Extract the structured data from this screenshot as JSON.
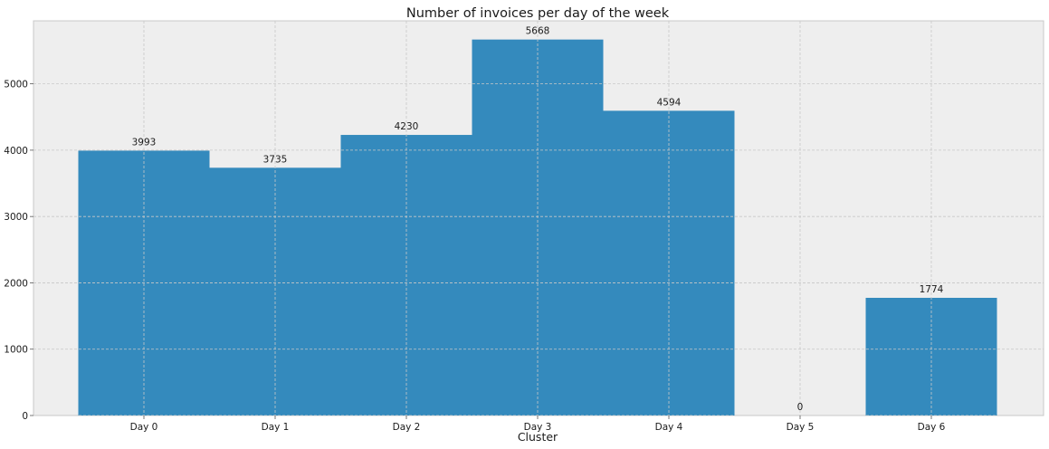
{
  "chart_data": {
    "type": "bar",
    "title": "Number of invoices per day of the week",
    "xlabel": "Cluster",
    "ylabel": "",
    "categories": [
      "Day 0",
      "Day 1",
      "Day 2",
      "Day 3",
      "Day 4",
      "Day 5",
      "Day 6"
    ],
    "values": [
      3993,
      3735,
      4230,
      5668,
      4594,
      0,
      1774
    ],
    "data_labels": [
      "3993",
      "3735",
      "4230",
      "5668",
      "4594",
      "0",
      "1774"
    ],
    "yticks": [
      0,
      1000,
      2000,
      3000,
      4000,
      5000
    ],
    "ytick_labels": [
      "0",
      "1000",
      "2000",
      "3000",
      "4000",
      "5000"
    ],
    "ylim": [
      0,
      5950
    ],
    "grid": true,
    "colors": {
      "bar": "#348abd",
      "plot_background": "#eeeeee",
      "figure_background": "#ffffff",
      "grid": "#c8c8c8"
    }
  }
}
